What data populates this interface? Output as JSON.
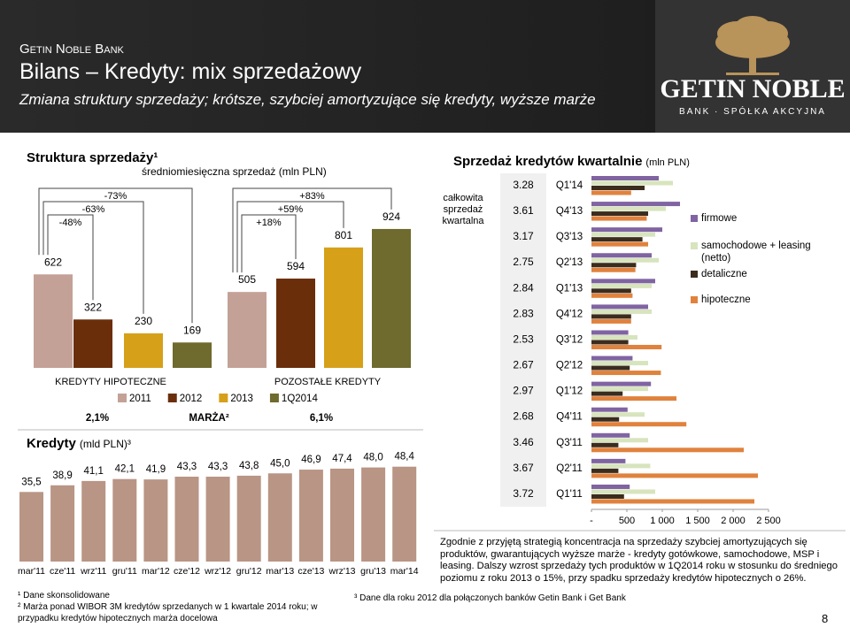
{
  "header": {
    "brand": "Getin Noble Bank",
    "title": "Bilans – Kredyty: mix sprzedażowy",
    "subtitle": "Zmiana struktury sprzedaży; krótsze, szybciej amortyzujące się kredyty, wyższe marże"
  },
  "logo": {
    "name": "GETIN NOBLE",
    "tagline": "BANK · SPÓŁKA AKCYJNA"
  },
  "chart_data": [
    {
      "type": "bar",
      "title": "Struktura sprzedaży¹",
      "subtitle": "średniomiesięczna sprzedaż (mln PLN)",
      "categories": [
        "KREDYTY HIPOTECZNE",
        "POZOSTAŁE KREDYTY"
      ],
      "series": [
        {
          "name": "2011",
          "color": "#c4a196",
          "values": [
            622,
            505
          ]
        },
        {
          "name": "2012",
          "color": "#6b2e0b",
          "values": [
            322,
            594
          ]
        },
        {
          "name": "2013",
          "color": "#d6a019",
          "values": [
            230,
            801
          ]
        },
        {
          "name": "1Q2014",
          "color": "#6f6a2d",
          "values": [
            169,
            924
          ]
        }
      ],
      "changes": [
        [
          {
            "value": -48,
            "label": "-48%"
          },
          {
            "value": -63,
            "label": "-63%"
          },
          {
            "value": -73,
            "label": "-73%"
          }
        ],
        [
          {
            "value": 18,
            "label": "+18%"
          },
          {
            "value": 59,
            "label": "+59%"
          },
          {
            "value": 83,
            "label": "+83%"
          }
        ]
      ],
      "margin_title": "MARŻA²",
      "margins": [
        {
          "value": 2.1,
          "label": "2,1%"
        },
        {
          "value": 6.1,
          "label": "6,1%"
        }
      ],
      "ylim": [
        0,
        1000
      ]
    },
    {
      "type": "bar",
      "title": "Kredyty",
      "unit": "(mld PLN)³",
      "color": "#b99585",
      "categories": [
        "mar'11",
        "cze'11",
        "wrz'11",
        "gru'11",
        "mar'12",
        "cze'12",
        "wrz'12",
        "gru'12",
        "mar'13",
        "cze'13",
        "wrz'13",
        "gru'13",
        "mar'14"
      ],
      "values": [
        35.5,
        38.9,
        41.1,
        42.1,
        41.9,
        43.3,
        43.3,
        43.8,
        45.0,
        46.9,
        47.4,
        48.0,
        48.4
      ],
      "value_labels": [
        "35,5",
        "38,9",
        "41,1",
        "42,1",
        "41,9",
        "43,3",
        "43,3",
        "43,8",
        "45,0",
        "46,9",
        "47,4",
        "48,0",
        "48,4"
      ],
      "ylim": [
        0,
        60
      ]
    },
    {
      "type": "hbar",
      "title": "Sprzedaż kredytów kwartalnie",
      "unit": "(mln PLN)",
      "categories": [
        "Q1'14",
        "Q4'13",
        "Q3'13",
        "Q2'13",
        "Q1'13",
        "Q4'12",
        "Q3'12",
        "Q2'12",
        "Q1'12",
        "Q4'11",
        "Q3'11",
        "Q2'11",
        "Q1'11"
      ],
      "totals_label": "całkowita sprzedaż kwartalna",
      "totals": [
        3.28,
        3.61,
        3.17,
        2.75,
        2.84,
        2.83,
        2.53,
        2.67,
        2.97,
        2.68,
        3.46,
        3.67,
        3.72
      ],
      "series": [
        {
          "name": "firmowe",
          "color": "#8064a2",
          "values": [
            950,
            1250,
            1000,
            850,
            900,
            800,
            520,
            580,
            840,
            510,
            540,
            480,
            540
          ]
        },
        {
          "name": "samochodowe + leasing (netto)",
          "color": "#d7e4bd",
          "values": [
            1150,
            1050,
            900,
            950,
            850,
            850,
            650,
            800,
            800,
            750,
            800,
            830,
            900
          ]
        },
        {
          "name": "detaliczne",
          "color": "#3b2c1e",
          "values": [
            750,
            800,
            720,
            630,
            560,
            560,
            520,
            540,
            440,
            390,
            380,
            380,
            460
          ]
        },
        {
          "name": "hipoteczne",
          "color": "#e0823d",
          "values": [
            560,
            780,
            800,
            620,
            580,
            560,
            990,
            980,
            1200,
            1340,
            2150,
            2350,
            2300
          ]
        }
      ],
      "xlim": [
        0,
        2500
      ],
      "xticks": [
        {
          "value": 0,
          "label": "-"
        },
        500,
        {
          "value": 1000,
          "label": "1 000"
        },
        {
          "value": 1500,
          "label": "1 500"
        },
        {
          "value": 2000,
          "label": "2 000"
        },
        {
          "value": 2500,
          "label": "2 500"
        }
      ]
    }
  ],
  "commentary": "Zgodnie z przyjętą strategią koncentracja na sprzedaży szybciej amortyzujących się produktów, gwarantujących wyższe marże - kredyty gotówkowe, samochodowe, MSP i leasing. Dalszy wzrost sprzedaży tych produktów w 1Q2014 roku w stosunku do średniego poziomu z roku 2013 o 15%, przy spadku sprzedaży kredytów hipotecznych o 26%.",
  "footnotes": [
    "¹ Dane skonsolidowane",
    "² Marża ponad WIBOR 3M kredytów sprzedanych w 1 kwartale 2014 roku; w przypadku kredytów hipotecznych marża docelowa",
    "³ Dane dla roku 2012 dla połączonych banków Getin Bank i Get Bank"
  ],
  "page_number": "8"
}
